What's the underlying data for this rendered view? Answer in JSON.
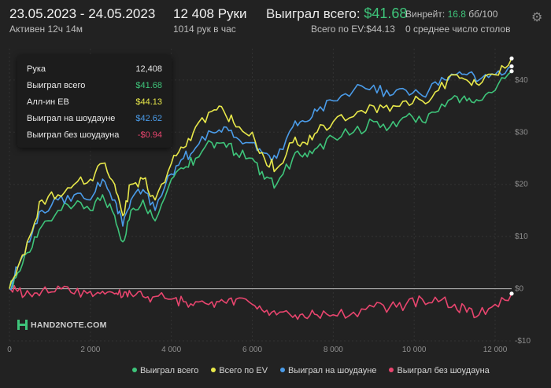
{
  "header": {
    "date_range": "23.05.2023 - 24.05.2023",
    "active": "Активен 12ч 14м",
    "hands": "12 408 Руки",
    "rate": "1014 рук в час",
    "won_label": "Выиграл всего:",
    "won_value": "$41.68",
    "ev_total": "Всего по EV:$44.13",
    "winrate_label": "Винрейт:",
    "winrate_value": "16.8",
    "winrate_unit": "бб/100",
    "avg_tables": "0 среднее число столов",
    "settings_icon": "gear-icon"
  },
  "tooltip": {
    "rows": [
      {
        "label": "Рука",
        "value": "12,408",
        "color": "#e6e6e6"
      },
      {
        "label": "Выиграл всего",
        "value": "$41.68",
        "color": "#3ec47a"
      },
      {
        "label": "Алл-ин EB",
        "value": "$44.13",
        "color": "#e8e84a"
      },
      {
        "label": "Выиграл на шоудауне",
        "value": "$42.62",
        "color": "#4a9be8"
      },
      {
        "label": "Выиграл без шоудауна",
        "value": "-$0.94",
        "color": "#e8456e"
      }
    ]
  },
  "watermark": "HAND2NOTE.COM",
  "chart_data": {
    "type": "line",
    "xlim": [
      0,
      12408
    ],
    "ylim": [
      -10,
      46
    ],
    "x_ticks": [
      0,
      2000,
      4000,
      6000,
      8000,
      10000,
      12000
    ],
    "x_tick_labels": [
      "0",
      "2 000",
      "4 000",
      "6 000",
      "8 000",
      "10 000",
      "12 000"
    ],
    "y_ticks": [
      -10,
      0,
      10,
      20,
      30,
      40
    ],
    "y_tick_labels": [
      "-$10",
      "$0",
      "$10",
      "$20",
      "$30",
      "$40"
    ],
    "grid": true,
    "legend_position": "bottom",
    "x": [
      0,
      200,
      500,
      800,
      1200,
      1600,
      2000,
      2300,
      2600,
      2800,
      3000,
      3300,
      3600,
      4000,
      4300,
      4600,
      5000,
      5300,
      5600,
      6000,
      6300,
      6600,
      7000,
      7300,
      7600,
      8000,
      8500,
      9000,
      9400,
      9800,
      10200,
      10600,
      11000,
      11300,
      11600,
      12000,
      12408
    ],
    "series": [
      {
        "name": "Выиграл всего",
        "color": "#3ec47a",
        "values": [
          0,
          3,
          7,
          12,
          15,
          16,
          15,
          18,
          14,
          9,
          15,
          17,
          13,
          21,
          23,
          25,
          28,
          28,
          26,
          25,
          21,
          20,
          25,
          26,
          27,
          29,
          30,
          32,
          31,
          33,
          32,
          34,
          37,
          36,
          36,
          38,
          41.68
        ]
      },
      {
        "name": "Всего по EV",
        "color": "#e8e84a",
        "values": [
          0,
          4,
          10,
          17,
          18,
          20,
          21,
          24,
          20,
          14,
          20,
          21,
          17,
          24,
          27,
          31,
          34,
          34,
          31,
          30,
          25,
          23,
          28,
          28,
          30,
          32,
          33,
          35,
          34,
          36,
          36,
          38,
          41,
          40,
          39,
          41,
          44.13
        ]
      },
      {
        "name": "Выиграл на шоудауне",
        "color": "#4a9be8",
        "values": [
          0,
          4,
          9,
          15,
          17,
          18,
          17,
          21,
          17,
          12,
          17,
          19,
          15,
          22,
          25,
          27,
          30,
          31,
          29,
          28,
          26,
          25,
          31,
          32,
          34,
          36,
          38,
          39,
          37,
          38,
          37,
          39,
          41,
          41,
          40,
          41,
          42.62
        ]
      },
      {
        "name": "Выиграл без шоудауна",
        "color": "#e8456e",
        "values": [
          0,
          -0.5,
          -1,
          -0.5,
          0.5,
          -1,
          -0.5,
          -0.5,
          -1,
          -1.5,
          -1,
          -1.5,
          -1.5,
          -2,
          -2.5,
          -2.5,
          -2.5,
          -2.5,
          -2,
          -3,
          -4.5,
          -5,
          -5.5,
          -5.5,
          -5,
          -5,
          -4.5,
          -3.5,
          -3.5,
          -3,
          -2,
          -2.5,
          -3,
          -4.5,
          -5,
          -3,
          -0.94
        ]
      }
    ]
  }
}
